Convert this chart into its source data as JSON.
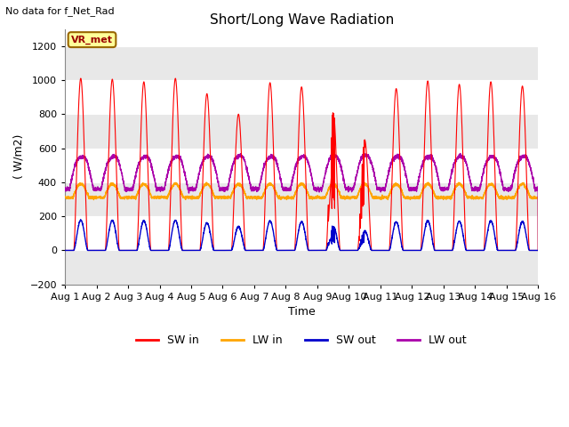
{
  "title": "Short/Long Wave Radiation",
  "xlabel": "Time",
  "ylabel": "( W/m2)",
  "top_label": "No data for f_Net_Rad",
  "annotation": "VR_met",
  "ylim": [
    -200,
    1300
  ],
  "yticks": [
    -200,
    0,
    200,
    400,
    600,
    800,
    1000,
    1200
  ],
  "x_labels": [
    "Aug 1",
    "Aug 2",
    "Aug 3",
    "Aug 4",
    "Aug 5",
    "Aug 6",
    "Aug 7",
    "Aug 8",
    "Aug 9",
    "Aug 10",
    "Aug 11",
    "Aug 12",
    "Aug 13",
    "Aug 14",
    "Aug 15",
    "Aug 16"
  ],
  "colors": {
    "SW_in": "#FF0000",
    "LW_in": "#FFA500",
    "SW_out": "#0000CC",
    "LW_out": "#AA00AA"
  },
  "legend_labels": [
    "SW in",
    "LW in",
    "SW out",
    "LW out"
  ],
  "n_days": 15,
  "points_per_day": 288
}
